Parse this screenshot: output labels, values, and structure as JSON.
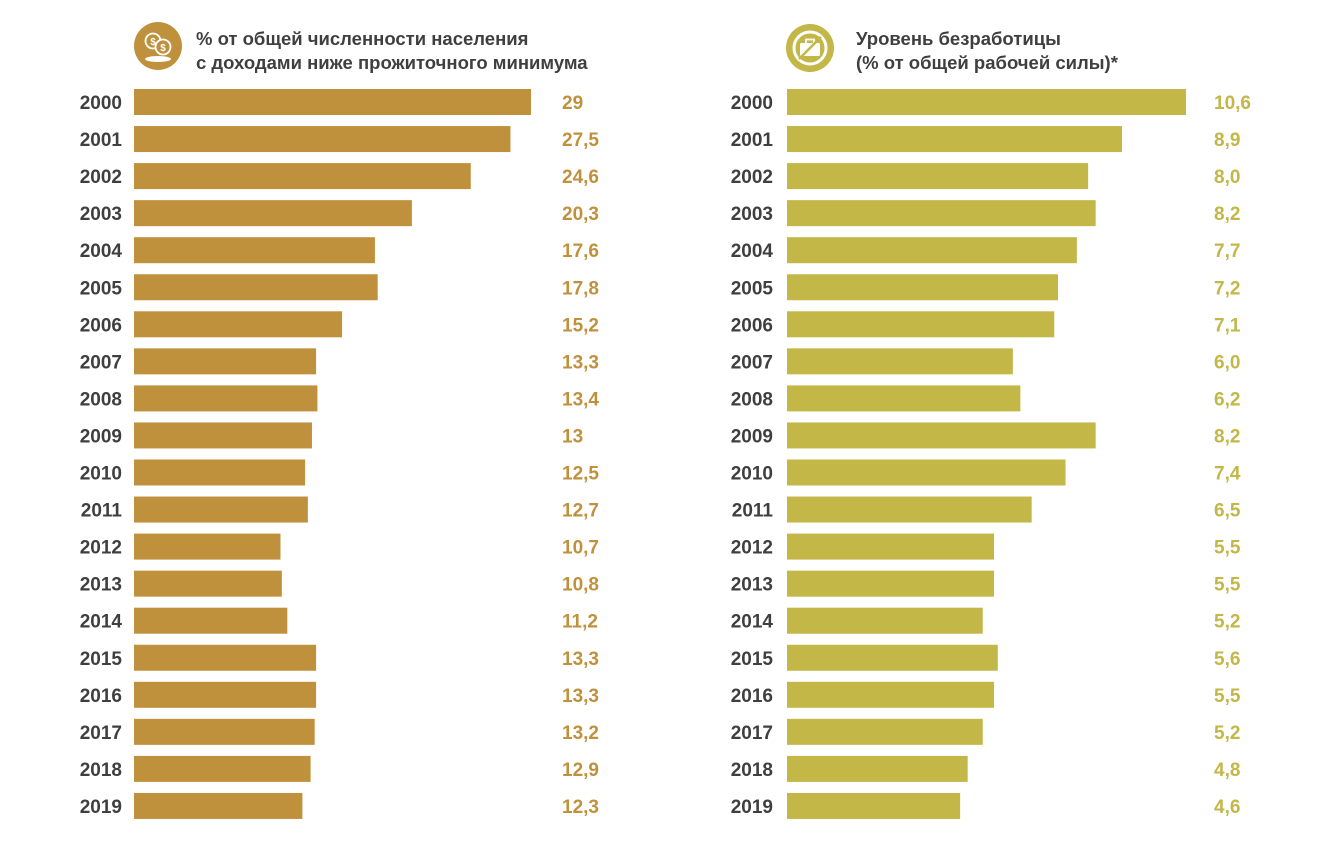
{
  "colors": {
    "left_bar": "#c0913c",
    "right_bar": "#c2b747",
    "year_text": "#3f3f3f"
  },
  "chart_data": [
    {
      "type": "bar",
      "orientation": "horizontal",
      "title": "% от общей численности населения с доходами ниже прожиточного минимума",
      "title_lines": [
        "% от общей численности населения",
        "с доходами ниже прожиточного минимума"
      ],
      "icon": "money-coins-icon",
      "categories": [
        "2000",
        "2001",
        "2002",
        "2003",
        "2004",
        "2005",
        "2006",
        "2007",
        "2008",
        "2009",
        "2010",
        "2011",
        "2012",
        "2013",
        "2014",
        "2015",
        "2016",
        "2017",
        "2018",
        "2019"
      ],
      "values": [
        29,
        27.5,
        24.6,
        20.3,
        17.6,
        17.8,
        15.2,
        13.3,
        13.4,
        13,
        12.5,
        12.7,
        10.7,
        10.8,
        11.2,
        13.3,
        13.3,
        13.2,
        12.9,
        12.3
      ],
      "value_labels": [
        "29",
        "27,5",
        "24,6",
        "20,3",
        "17,6",
        "17,8",
        "15,2",
        "13,3",
        "13,4",
        "13",
        "12,5",
        "12,7",
        "10,7",
        "10,8",
        "11,2",
        "13,3",
        "13,3",
        "13,2",
        "12,9",
        "12,3"
      ],
      "xlim": [
        0,
        29
      ]
    },
    {
      "type": "bar",
      "orientation": "horizontal",
      "title": "Уровень безработицы (% от общей рабочей силы)*",
      "title_lines": [
        "Уровень безработицы",
        "(% от общей рабочей силы)*"
      ],
      "icon": "briefcase-crossed-icon",
      "categories": [
        "2000",
        "2001",
        "2002",
        "2003",
        "2004",
        "2005",
        "2006",
        "2007",
        "2008",
        "2009",
        "2010",
        "2011",
        "2012",
        "2013",
        "2014",
        "2015",
        "2016",
        "2017",
        "2018",
        "2019"
      ],
      "values": [
        10.6,
        8.9,
        8.0,
        8.2,
        7.7,
        7.2,
        7.1,
        6.0,
        6.2,
        8.2,
        7.4,
        6.5,
        5.5,
        5.5,
        5.2,
        5.6,
        5.5,
        5.2,
        4.8,
        4.6
      ],
      "value_labels": [
        "10,6",
        "8,9",
        "8,0",
        "8,2",
        "7,7",
        "7,2",
        "7,1",
        "6,0",
        "6,2",
        "8,2",
        "7,4",
        "6,5",
        "5,5",
        "5,5",
        "5,2",
        "5,6",
        "5,5",
        "5,2",
        "4,8",
        "4,6"
      ],
      "xlim": [
        0,
        10.6
      ]
    }
  ]
}
